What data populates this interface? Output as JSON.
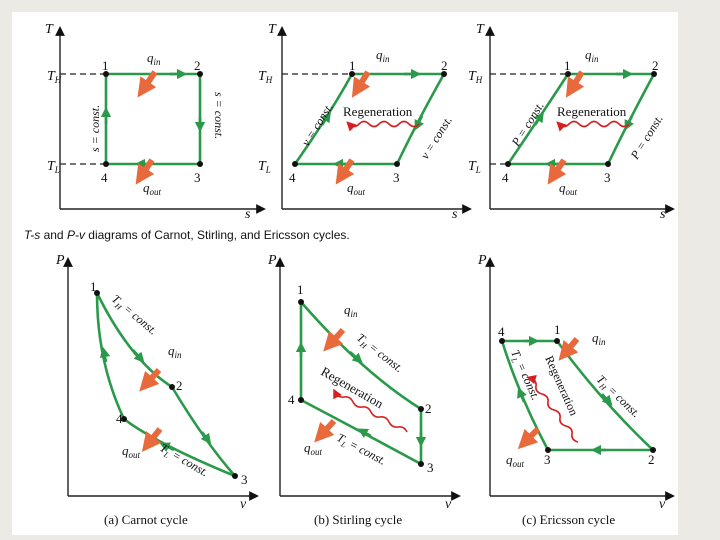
{
  "caption": {
    "ts": "T-s",
    "and1": " and ",
    "pv": "P-v",
    "rest": " diagrams of Carnot, Stirling, and Ericsson cycles."
  },
  "axes": {
    "T": "T",
    "s": "s",
    "P": "P",
    "v": "v",
    "TH": "TH",
    "TL": "TL"
  },
  "heat": {
    "qin": "qin",
    "qout": "qout"
  },
  "states": [
    "1",
    "2",
    "3",
    "4"
  ],
  "process_labels": {
    "s_const": "s = const.",
    "v_const": "v = const.",
    "p_const": "P = const.",
    "th_const": "TH = const.",
    "tl_const": "TL = const.",
    "regeneration": "Regeneration"
  },
  "cycles": {
    "a": "(a) Carnot cycle",
    "b": "(b) Stirling cycle",
    "c": "(c) Ericsson cycle"
  },
  "colors": {
    "process": "#2a9a4a",
    "heat_arrow": "#e86a3c",
    "regen": "#d42020"
  }
}
